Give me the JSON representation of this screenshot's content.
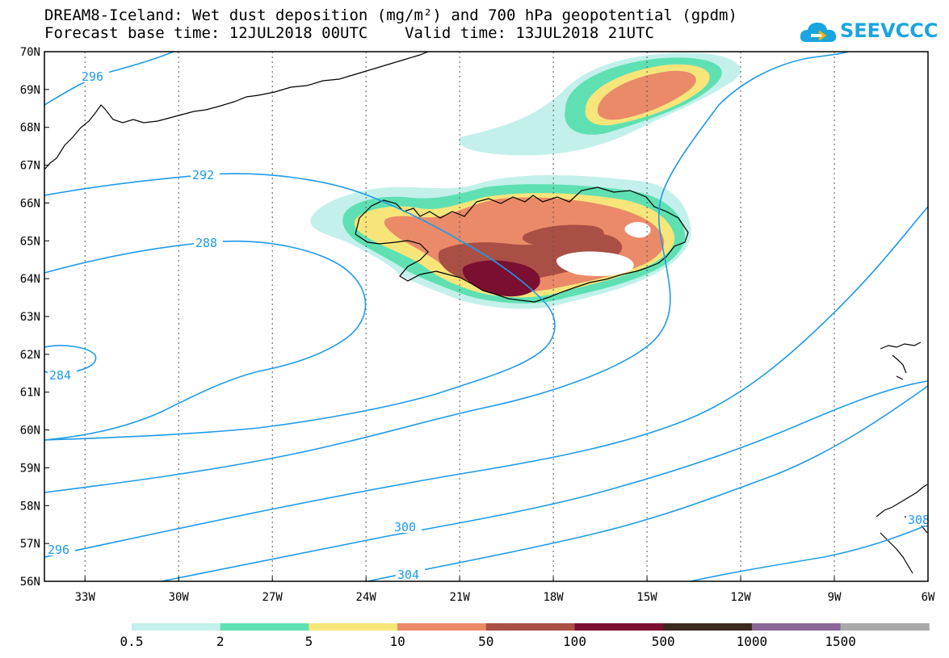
{
  "title": {
    "line1": "DREAM8-Iceland: Wet dust deposition (mg/m²) and 700 hPa geopotential (gpdm)",
    "line2": "Forecast base time: 12JUL2018 00UTC    Valid time: 13JUL2018 21UTC"
  },
  "logo": {
    "text": "SEEVCCC",
    "icon": "cloud-arrow-icon",
    "color": "#1aa5df"
  },
  "map": {
    "lat_labels": [
      "70N",
      "69N",
      "68N",
      "67N",
      "66N",
      "65N",
      "64N",
      "63N",
      "62N",
      "61N",
      "60N",
      "59N",
      "58N",
      "57N",
      "56N"
    ],
    "lon_labels": [
      "33W",
      "30W",
      "27W",
      "24W",
      "21W",
      "18W",
      "15W",
      "12W",
      "9W",
      "6W"
    ],
    "lat_range": [
      56,
      70
    ],
    "lon_range": [
      -34.3,
      -6
    ],
    "contour_color": "#1e9be8",
    "contour_labels": [
      "296",
      "292",
      "288",
      "284",
      "300",
      "304",
      "296",
      "308"
    ]
  },
  "legend": {
    "thresholds": [
      "0.5",
      "2",
      "5",
      "10",
      "50",
      "100",
      "500",
      "1000",
      "1500"
    ],
    "colors": [
      "#c3f0ea",
      "#5fe0b2",
      "#f8e57a",
      "#ea8a68",
      "#a94f45",
      "#7b0f32",
      "#3d2a1e",
      "#8a6797",
      "#a9a9a9"
    ]
  }
}
